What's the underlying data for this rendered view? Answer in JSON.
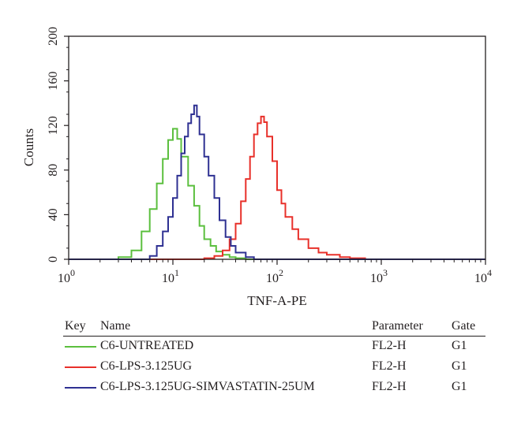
{
  "chart_data": {
    "type": "histogram",
    "xlabel": "TNF-A-PE",
    "ylabel": "Counts",
    "xscale": "log",
    "xlim": [
      1,
      10000
    ],
    "ylim": [
      0,
      200
    ],
    "x_ticks": [
      {
        "value": 1,
        "base": "10",
        "exp": "0"
      },
      {
        "value": 10,
        "base": "10",
        "exp": "1"
      },
      {
        "value": 100,
        "base": "10",
        "exp": "2"
      },
      {
        "value": 1000,
        "base": "10",
        "exp": "3"
      },
      {
        "value": 10000,
        "base": "10",
        "exp": "4"
      }
    ],
    "y_ticks": [
      0,
      40,
      80,
      120,
      160,
      200
    ],
    "grid": false,
    "series": [
      {
        "name": "C6-UNTREATED",
        "color": "#5bbf3e",
        "x": [
          1,
          2,
          3,
          4,
          5,
          6,
          7,
          8,
          9,
          10,
          11,
          12,
          14,
          16,
          18,
          20,
          23,
          26,
          30,
          35,
          40,
          50,
          60,
          100,
          1000,
          10000
        ],
        "y": [
          0,
          0,
          2,
          8,
          25,
          45,
          68,
          90,
          107,
          117,
          108,
          92,
          66,
          48,
          30,
          18,
          12,
          7,
          4,
          2,
          1,
          0,
          0,
          0,
          0,
          0
        ]
      },
      {
        "name": "C6-LPS-3.125UG",
        "color": "#e8302a",
        "x": [
          1,
          10,
          20,
          25,
          30,
          35,
          40,
          45,
          50,
          55,
          60,
          65,
          70,
          75,
          80,
          90,
          100,
          110,
          120,
          140,
          160,
          200,
          250,
          300,
          400,
          500,
          700,
          1000,
          3000,
          10000
        ],
        "y": [
          0,
          0,
          1,
          3,
          8,
          18,
          32,
          52,
          72,
          92,
          112,
          122,
          128,
          123,
          110,
          88,
          62,
          50,
          38,
          27,
          18,
          10,
          6,
          4,
          2,
          1,
          0,
          0,
          0,
          0
        ]
      },
      {
        "name": "C6-LPS-3.125UG-SIMVASTATIN-25UM",
        "color": "#2e3092",
        "x": [
          1,
          4,
          6,
          7,
          8,
          9,
          10,
          11,
          12,
          13,
          14,
          15,
          16,
          17,
          18,
          20,
          22,
          25,
          28,
          32,
          36,
          40,
          50,
          60,
          100,
          1000,
          10000
        ],
        "y": [
          0,
          0,
          3,
          12,
          25,
          38,
          55,
          75,
          95,
          110,
          122,
          130,
          138,
          128,
          112,
          92,
          75,
          55,
          35,
          20,
          12,
          6,
          2,
          0,
          0,
          0,
          0
        ]
      }
    ]
  },
  "legend": {
    "headers": {
      "key": "Key",
      "name": "Name",
      "parameter": "Parameter",
      "gate": "Gate"
    },
    "rows": [
      {
        "color": "#5bbf3e",
        "name": "C6-UNTREATED",
        "parameter": "FL2-H",
        "gate": "G1"
      },
      {
        "color": "#e8302a",
        "name": "C6-LPS-3.125UG",
        "parameter": "FL2-H",
        "gate": "G1"
      },
      {
        "color": "#2e3092",
        "name": "C6-LPS-3.125UG-SIMVASTATIN-25UM",
        "parameter": "FL2-H",
        "gate": "G1"
      }
    ]
  }
}
